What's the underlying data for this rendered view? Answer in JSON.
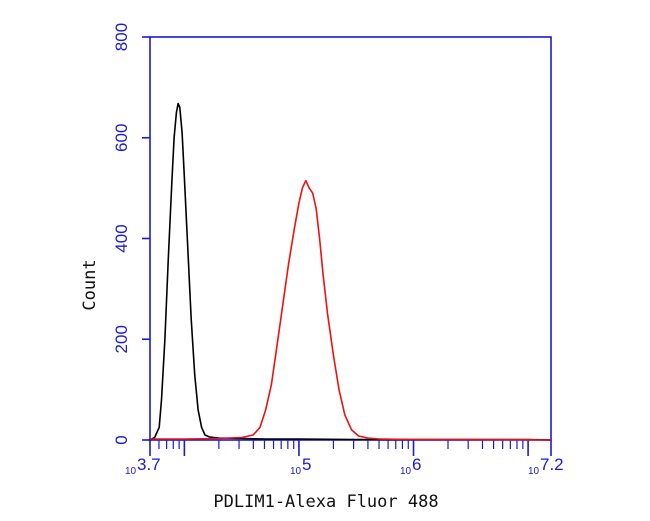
{
  "chart_data": {
    "type": "line",
    "xlabel": "PDLIM1-Alexa Fluor 488",
    "ylabel": "Count",
    "x_scale": "log",
    "xlim_log10": [
      3.7,
      7.2
    ],
    "ylim": [
      0,
      800
    ],
    "y_ticks": [
      0,
      200,
      400,
      600,
      800
    ],
    "y_tick_labels": [
      "0",
      "200",
      "400",
      "600",
      "800"
    ],
    "x_ticks": [
      {
        "base": "10",
        "exp": "3.7",
        "log": 3.7
      },
      {
        "base": "10",
        "exp": "5",
        "log": 5
      },
      {
        "base": "10",
        "exp": "6",
        "log": 6
      },
      {
        "base": "10",
        "exp": "7.2",
        "log": 7.2
      }
    ],
    "grid": false,
    "legend": "none",
    "colors": {
      "axis": "#1a1ad6",
      "control": "#000000",
      "sample": "#ee1111"
    },
    "series": [
      {
        "color": "#000000",
        "points": [
          [
            3.7,
            0
          ],
          [
            3.74,
            5
          ],
          [
            3.78,
            25
          ],
          [
            3.8,
            80
          ],
          [
            3.83,
            200
          ],
          [
            3.86,
            360
          ],
          [
            3.89,
            510
          ],
          [
            3.91,
            600
          ],
          [
            3.93,
            650
          ],
          [
            3.945,
            668
          ],
          [
            3.96,
            660
          ],
          [
            3.98,
            610
          ],
          [
            4.0,
            520
          ],
          [
            4.03,
            380
          ],
          [
            4.06,
            240
          ],
          [
            4.09,
            130
          ],
          [
            4.12,
            60
          ],
          [
            4.15,
            25
          ],
          [
            4.18,
            10
          ],
          [
            4.22,
            6
          ],
          [
            4.3,
            4
          ],
          [
            4.5,
            3
          ],
          [
            4.7,
            2
          ],
          [
            5.0,
            2
          ],
          [
            5.5,
            1
          ],
          [
            6.0,
            1
          ],
          [
            6.5,
            1
          ],
          [
            7.0,
            1
          ],
          [
            7.2,
            0
          ]
        ]
      },
      {
        "color": "#ee1111",
        "points": [
          [
            3.7,
            2
          ],
          [
            4.0,
            2
          ],
          [
            4.3,
            3
          ],
          [
            4.5,
            5
          ],
          [
            4.6,
            10
          ],
          [
            4.66,
            25
          ],
          [
            4.71,
            60
          ],
          [
            4.76,
            110
          ],
          [
            4.81,
            190
          ],
          [
            4.86,
            270
          ],
          [
            4.91,
            350
          ],
          [
            4.96,
            420
          ],
          [
            5.0,
            470
          ],
          [
            5.03,
            500
          ],
          [
            5.06,
            515
          ],
          [
            5.09,
            500
          ],
          [
            5.12,
            490
          ],
          [
            5.15,
            460
          ],
          [
            5.18,
            400
          ],
          [
            5.21,
            330
          ],
          [
            5.25,
            250
          ],
          [
            5.3,
            170
          ],
          [
            5.35,
            100
          ],
          [
            5.4,
            50
          ],
          [
            5.46,
            20
          ],
          [
            5.52,
            8
          ],
          [
            5.6,
            4
          ],
          [
            5.7,
            2
          ],
          [
            6.0,
            1
          ],
          [
            6.5,
            1
          ],
          [
            7.2,
            0
          ]
        ]
      }
    ]
  }
}
